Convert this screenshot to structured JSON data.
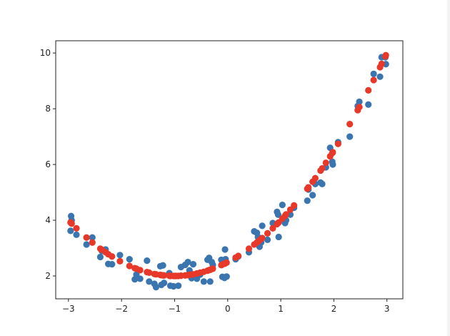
{
  "chart_data": {
    "type": "scatter",
    "title": "",
    "xlabel": "",
    "ylabel": "",
    "xlim": [
      -3.24,
      3.3
    ],
    "ylim": [
      1.18,
      10.44
    ],
    "xticks": [
      -3,
      -2,
      -1,
      0,
      1,
      2,
      3
    ],
    "yticks": [
      2,
      4,
      6,
      8,
      10
    ],
    "xtick_labels": [
      "−3",
      "−2",
      "−1",
      "0",
      "1",
      "2",
      "3"
    ],
    "ytick_labels": [
      "2",
      "4",
      "6",
      "8",
      "10"
    ],
    "grid": false,
    "legend": "none",
    "series": [
      {
        "color": "#3a75b0",
        "x": [
          -2.95,
          -2.96,
          -2.94,
          -2.85,
          -2.66,
          -2.55,
          -2.4,
          -2.37,
          -2.3,
          -2.25,
          -2.18,
          -2.03,
          -1.85,
          -1.75,
          -1.72,
          -1.65,
          -1.52,
          -1.48,
          -1.38,
          -1.35,
          -1.27,
          -1.25,
          -1.22,
          -1.2,
          -1.1,
          -1.08,
          -1.02,
          -0.98,
          -0.93,
          -0.88,
          -0.8,
          -0.75,
          -0.72,
          -0.68,
          -0.65,
          -0.58,
          -0.52,
          -0.45,
          -0.38,
          -0.35,
          -0.33,
          -0.3,
          -0.28,
          -0.12,
          -0.1,
          -0.05,
          -0.04,
          -0.06,
          -0.02,
          0.15,
          0.2,
          0.4,
          0.5,
          0.55,
          0.57,
          0.6,
          0.63,
          0.65,
          0.75,
          0.85,
          0.93,
          0.95,
          0.96,
          1.03,
          1.08,
          1.1,
          1.18,
          1.25,
          1.5,
          1.52,
          1.6,
          1.65,
          1.75,
          1.78,
          1.85,
          1.93,
          1.97,
          1.98,
          2.08,
          2.3,
          2.45,
          2.48,
          2.65,
          2.75,
          2.87,
          2.9,
          2.97,
          2.98
        ],
        "y": [
          4.15,
          3.62,
          4.0,
          3.48,
          3.13,
          3.38,
          2.68,
          2.9,
          2.95,
          2.43,
          2.42,
          2.75,
          2.6,
          1.88,
          2.05,
          1.9,
          2.55,
          1.8,
          1.72,
          1.6,
          2.35,
          1.68,
          2.38,
          1.75,
          2.1,
          1.65,
          1.63,
          2.0,
          1.65,
          2.32,
          2.4,
          2.5,
          2.2,
          1.92,
          2.42,
          1.9,
          2.05,
          1.8,
          2.58,
          2.65,
          1.8,
          2.5,
          2.4,
          2.58,
          1.97,
          2.95,
          2.6,
          1.93,
          1.98,
          2.6,
          2.7,
          2.85,
          3.6,
          3.55,
          3.4,
          3.05,
          3.2,
          3.8,
          3.3,
          3.9,
          4.3,
          4.2,
          3.4,
          4.55,
          3.9,
          4.0,
          4.2,
          4.45,
          4.7,
          5.1,
          4.9,
          5.3,
          5.35,
          5.3,
          5.9,
          6.6,
          6.1,
          6.0,
          6.8,
          7.0,
          8.1,
          8.25,
          8.15,
          9.25,
          9.15,
          9.85,
          9.85,
          9.6
        ]
      },
      {
        "color": "#e8382a",
        "x": [
          -2.95,
          -2.96,
          -2.94,
          -2.85,
          -2.66,
          -2.55,
          -2.4,
          -2.37,
          -2.3,
          -2.25,
          -2.18,
          -2.03,
          -1.85,
          -1.75,
          -1.72,
          -1.65,
          -1.52,
          -1.48,
          -1.38,
          -1.35,
          -1.27,
          -1.25,
          -1.22,
          -1.2,
          -1.1,
          -1.08,
          -1.02,
          -0.98,
          -0.93,
          -0.88,
          -0.8,
          -0.75,
          -0.72,
          -0.68,
          -0.65,
          -0.58,
          -0.52,
          -0.45,
          -0.38,
          -0.35,
          -0.33,
          -0.3,
          -0.28,
          -0.12,
          -0.1,
          -0.05,
          -0.04,
          -0.06,
          -0.02,
          0.15,
          0.2,
          0.4,
          0.5,
          0.55,
          0.57,
          0.6,
          0.63,
          0.65,
          0.75,
          0.85,
          0.93,
          0.95,
          0.96,
          1.03,
          1.08,
          1.1,
          1.18,
          1.25,
          1.5,
          1.52,
          1.6,
          1.65,
          1.75,
          1.78,
          1.85,
          1.93,
          1.97,
          1.98,
          2.08,
          2.3,
          2.45,
          2.48,
          2.65,
          2.75,
          2.87,
          2.9,
          2.97,
          2.98
        ],
        "y": [
          3.9,
          3.92,
          3.88,
          3.71,
          3.38,
          3.2,
          2.98,
          2.94,
          2.85,
          2.78,
          2.7,
          2.53,
          2.36,
          2.28,
          2.26,
          2.21,
          2.14,
          2.12,
          2.07,
          2.06,
          2.04,
          2.03,
          2.02,
          2.02,
          2.01,
          2.0,
          2.0,
          2.0,
          2.0,
          2.01,
          2.02,
          2.03,
          2.04,
          2.05,
          2.06,
          2.09,
          2.12,
          2.15,
          2.19,
          2.21,
          2.22,
          2.25,
          2.26,
          2.39,
          2.41,
          2.45,
          2.46,
          2.44,
          2.48,
          2.66,
          2.72,
          2.98,
          3.13,
          3.2,
          3.23,
          3.28,
          3.33,
          3.36,
          3.53,
          3.71,
          3.86,
          3.9,
          3.92,
          4.06,
          4.16,
          4.21,
          4.38,
          4.53,
          5.13,
          5.18,
          5.38,
          5.51,
          5.78,
          5.86,
          6.06,
          6.29,
          6.41,
          6.44,
          6.74,
          7.45,
          7.95,
          8.06,
          8.66,
          9.03,
          9.49,
          9.61,
          9.88,
          9.92
        ]
      }
    ]
  }
}
